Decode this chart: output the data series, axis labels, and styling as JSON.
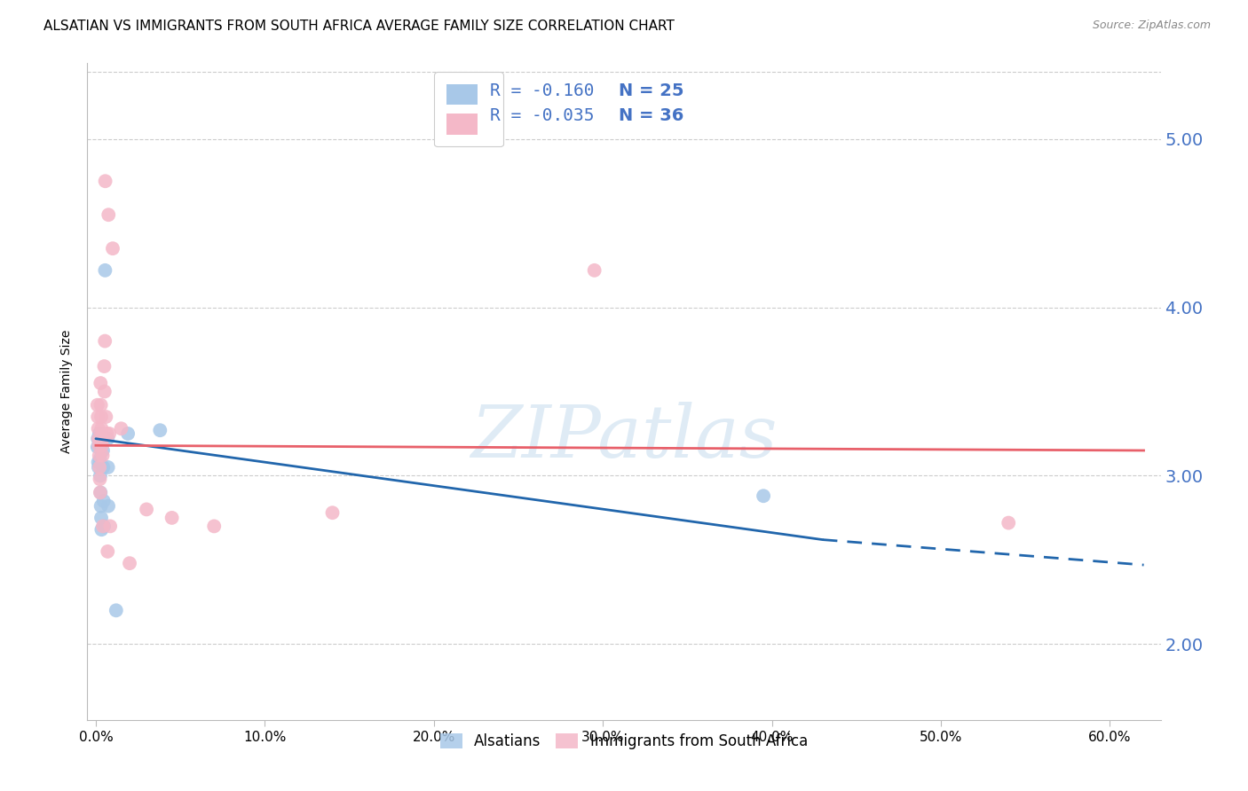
{
  "title": "ALSATIAN VS IMMIGRANTS FROM SOUTH AFRICA AVERAGE FAMILY SIZE CORRELATION CHART",
  "source": "Source: ZipAtlas.com",
  "ylabel": "Average Family Size",
  "xlabel_ticks": [
    "0.0%",
    "10.0%",
    "20.0%",
    "30.0%",
    "40.0%",
    "50.0%",
    "60.0%"
  ],
  "xlabel_vals": [
    0.0,
    10.0,
    20.0,
    30.0,
    40.0,
    50.0,
    60.0
  ],
  "ytick_vals": [
    2.0,
    3.0,
    4.0,
    5.0
  ],
  "ytick_labels": [
    "2.00",
    "3.00",
    "4.00",
    "5.00"
  ],
  "xlim": [
    -0.5,
    63.0
  ],
  "ylim": [
    1.55,
    5.45
  ],
  "legend1_R": "R = -0.160",
  "legend1_N": "N = 25",
  "legend2_R": "R = -0.035",
  "legend2_N": "N = 36",
  "legend1_color": "#a8c8e8",
  "legend2_color": "#f4b8c8",
  "watermark": "ZIPatlas",
  "blue_points": [
    [
      0.1,
      3.17
    ],
    [
      0.12,
      3.22
    ],
    [
      0.14,
      3.08
    ],
    [
      0.16,
      3.05
    ],
    [
      0.2,
      3.25
    ],
    [
      0.22,
      3.18
    ],
    [
      0.24,
      3.1
    ],
    [
      0.26,
      3.0
    ],
    [
      0.28,
      2.9
    ],
    [
      0.3,
      2.82
    ],
    [
      0.32,
      2.75
    ],
    [
      0.34,
      2.68
    ],
    [
      0.4,
      3.2
    ],
    [
      0.42,
      3.15
    ],
    [
      0.44,
      3.05
    ],
    [
      0.46,
      2.85
    ],
    [
      0.48,
      2.7
    ],
    [
      0.55,
      4.22
    ],
    [
      0.7,
      3.22
    ],
    [
      0.72,
      3.05
    ],
    [
      0.74,
      2.82
    ],
    [
      1.2,
      2.2
    ],
    [
      1.9,
      3.25
    ],
    [
      3.8,
      3.27
    ],
    [
      39.5,
      2.88
    ]
  ],
  "pink_points": [
    [
      0.1,
      3.42
    ],
    [
      0.12,
      3.35
    ],
    [
      0.14,
      3.28
    ],
    [
      0.16,
      3.22
    ],
    [
      0.18,
      3.18
    ],
    [
      0.2,
      3.12
    ],
    [
      0.22,
      3.05
    ],
    [
      0.24,
      2.98
    ],
    [
      0.26,
      2.9
    ],
    [
      0.28,
      3.55
    ],
    [
      0.3,
      3.42
    ],
    [
      0.32,
      3.35
    ],
    [
      0.34,
      3.28
    ],
    [
      0.36,
      3.22
    ],
    [
      0.38,
      3.18
    ],
    [
      0.4,
      3.12
    ],
    [
      0.42,
      2.7
    ],
    [
      0.5,
      3.65
    ],
    [
      0.52,
      3.5
    ],
    [
      0.54,
      3.8
    ],
    [
      0.6,
      3.35
    ],
    [
      0.65,
      3.25
    ],
    [
      0.7,
      2.55
    ],
    [
      0.75,
      4.55
    ],
    [
      0.8,
      3.25
    ],
    [
      0.85,
      2.7
    ],
    [
      1.0,
      4.35
    ],
    [
      1.5,
      3.28
    ],
    [
      2.0,
      2.48
    ],
    [
      3.0,
      2.8
    ],
    [
      4.5,
      2.75
    ],
    [
      7.0,
      2.7
    ],
    [
      14.0,
      2.78
    ],
    [
      29.5,
      4.22
    ],
    [
      54.0,
      2.72
    ],
    [
      0.56,
      4.75
    ]
  ],
  "blue_line_x0": 0.0,
  "blue_line_x1": 43.0,
  "blue_line_y0": 3.22,
  "blue_line_y1": 2.62,
  "blue_dash_x0": 43.0,
  "blue_dash_x1": 62.0,
  "blue_dash_y0": 2.62,
  "blue_dash_y1": 2.47,
  "pink_line_x0": 0.0,
  "pink_line_x1": 62.0,
  "pink_line_y0": 3.18,
  "pink_line_y1": 3.15,
  "marker_size": 130,
  "blue_color": "#a8c8e8",
  "pink_color": "#f4b8c8",
  "blue_line_color": "#2166ac",
  "pink_line_color": "#e8606a",
  "bg_color": "#ffffff",
  "grid_color": "#cccccc",
  "title_fontsize": 11,
  "axis_label_fontsize": 10,
  "tick_fontsize": 11,
  "right_tick_color": "#4472c4"
}
